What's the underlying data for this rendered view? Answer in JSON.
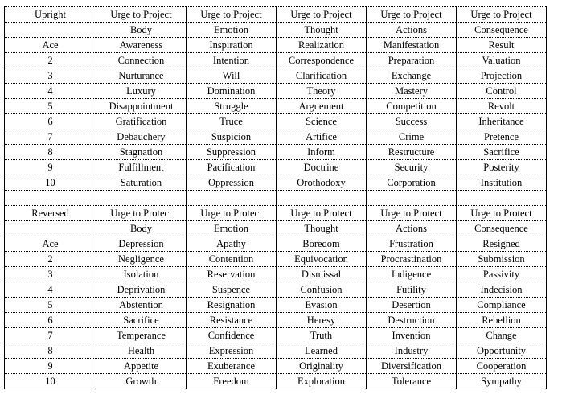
{
  "upright": {
    "rows": [
      [
        "Upright",
        "Urge to Project",
        "Urge to Project",
        "Urge to Project",
        "Urge to Project",
        "Urge to Project"
      ],
      [
        "",
        "Body",
        "Emotion",
        "Thought",
        "Actions",
        "Consequence"
      ],
      [
        "Ace",
        "Awareness",
        "Inspiration",
        "Realization",
        "Manifestation",
        "Result"
      ],
      [
        "2",
        "Connection",
        "Intention",
        "Correspondence",
        "Preparation",
        "Valuation"
      ],
      [
        "3",
        "Nurturance",
        "Will",
        "Clarification",
        "Exchange",
        "Projection"
      ],
      [
        "4",
        "Luxury",
        "Domination",
        "Theory",
        "Mastery",
        "Control"
      ],
      [
        "5",
        "Disappointment",
        "Struggle",
        "Arguement",
        "Competition",
        "Revolt"
      ],
      [
        "6",
        "Gratification",
        "Truce",
        "Science",
        "Success",
        "Inheritance"
      ],
      [
        "7",
        "Debauchery",
        "Suspicion",
        "Artifice",
        "Crime",
        "Pretence"
      ],
      [
        "8",
        "Stagnation",
        "Suppression",
        "Inform",
        "Restructure",
        "Sacrifice"
      ],
      [
        "9",
        "Fulfillment",
        "Pacification",
        "Doctrine",
        "Security",
        "Posterity"
      ],
      [
        "10",
        "Saturation",
        "Oppression",
        "Orothodoxy",
        "Corporation",
        "Institution"
      ]
    ]
  },
  "reversed": {
    "rows": [
      [
        "Reversed",
        "Urge to Protect",
        "Urge to Protect",
        "Urge to Protect",
        "Urge to Protect",
        "Urge to Protect"
      ],
      [
        "",
        "Body",
        "Emotion",
        "Thought",
        "Actions",
        "Consequence"
      ],
      [
        "Ace",
        "Depression",
        "Apathy",
        "Boredom",
        "Frustration",
        "Resigned"
      ],
      [
        "2",
        "Negligence",
        "Contention",
        "Equivocation",
        "Procrastination",
        "Submission"
      ],
      [
        "3",
        "Isolation",
        "Reservation",
        "Dismissal",
        "Indigence",
        "Passivity"
      ],
      [
        "4",
        "Deprivation",
        "Suspence",
        "Confusion",
        "Futility",
        "Indecision"
      ],
      [
        "5",
        "Abstention",
        "Resignation",
        "Evasion",
        "Desertion",
        "Compliance"
      ],
      [
        "6",
        "Sacrifice",
        "Resistance",
        "Heresy",
        "Destruction",
        "Rebellion"
      ],
      [
        "7",
        "Temperance",
        "Confidence",
        "Truth",
        "Invention",
        "Change"
      ],
      [
        "8",
        "Health",
        "Expression",
        "Learned",
        "Industry",
        "Opportunity"
      ],
      [
        "9",
        "Appetite",
        "Exuberance",
        "Originality",
        "Diversification",
        "Cooperation"
      ],
      [
        "10",
        "Growth",
        "Freedom",
        "Exploration",
        "Tolerance",
        "Sympathy"
      ]
    ]
  }
}
